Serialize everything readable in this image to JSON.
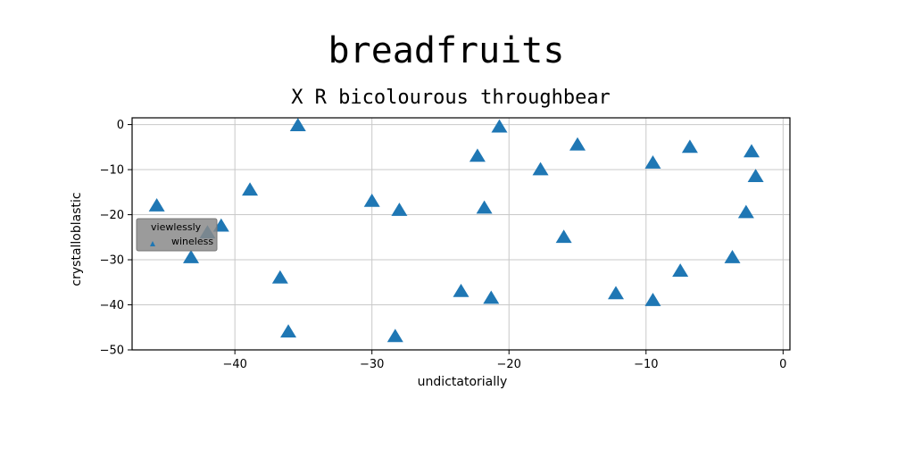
{
  "chart_data": {
    "type": "scatter",
    "title": "breadfruits",
    "subtitle": "X R bicolourous throughbear",
    "xlabel": "undictatorially",
    "ylabel": "crystalloblastic",
    "xlim": [
      -47.5,
      0.5
    ],
    "ylim": [
      -50,
      1.5
    ],
    "xticks": [
      -40,
      -30,
      -20,
      -10,
      0
    ],
    "yticks": [
      0,
      -10,
      -20,
      -30,
      -40,
      -50
    ],
    "grid": true,
    "legend": {
      "title": "viewlessly",
      "placement": "center-left",
      "entries": [
        "wineless"
      ]
    },
    "series": [
      {
        "name": "wineless",
        "marker": "triangle",
        "color": "#1f77b4",
        "points": [
          {
            "x": -45.7,
            "y": -18.0
          },
          {
            "x": -42.0,
            "y": -24.0
          },
          {
            "x": -41.0,
            "y": -22.5
          },
          {
            "x": -43.2,
            "y": -29.5
          },
          {
            "x": -38.9,
            "y": -14.5
          },
          {
            "x": -36.7,
            "y": -34.0
          },
          {
            "x": -35.4,
            "y": -0.2
          },
          {
            "x": -36.1,
            "y": -46.0
          },
          {
            "x": -30.0,
            "y": -17.0
          },
          {
            "x": -28.0,
            "y": -19.0
          },
          {
            "x": -28.3,
            "y": -47.0
          },
          {
            "x": -23.5,
            "y": -37.0
          },
          {
            "x": -22.3,
            "y": -7.0
          },
          {
            "x": -21.8,
            "y": -18.5
          },
          {
            "x": -21.3,
            "y": -38.5
          },
          {
            "x": -20.7,
            "y": -0.5
          },
          {
            "x": -17.7,
            "y": -10.0
          },
          {
            "x": -16.0,
            "y": -25.0
          },
          {
            "x": -15.0,
            "y": -4.5
          },
          {
            "x": -12.2,
            "y": -37.5
          },
          {
            "x": -9.5,
            "y": -8.5
          },
          {
            "x": -9.5,
            "y": -39.0
          },
          {
            "x": -7.5,
            "y": -32.5
          },
          {
            "x": -6.8,
            "y": -5.0
          },
          {
            "x": -3.7,
            "y": -29.5
          },
          {
            "x": -2.7,
            "y": -19.5
          },
          {
            "x": -2.3,
            "y": -6.0
          },
          {
            "x": -2.0,
            "y": -11.5
          }
        ]
      }
    ]
  }
}
